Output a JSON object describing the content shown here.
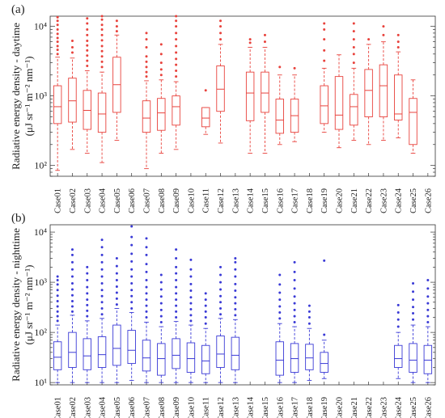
{
  "chart_data": [
    {
      "type": "box",
      "panel_label": "(a)",
      "ylabel": "Radiative energy density - daytime",
      "ylabel_unit": "(μJ sr⁻¹ m⁻² nm⁻¹)",
      "yscale": "log",
      "ylim": [
        70,
        14000
      ],
      "yticks": [
        {
          "value": 100,
          "label": "10²"
        },
        {
          "value": 1000,
          "label": "10³"
        },
        {
          "value": 10000,
          "label": "10⁴"
        }
      ],
      "color": "#e8423c",
      "categories": [
        "Case01",
        "Case02",
        "Case03",
        "Case04",
        "Case05",
        "Case06",
        "Case07",
        "Case08",
        "Case09",
        "Case10",
        "Case11",
        "Case12",
        "Case13",
        "Case14",
        "Case15",
        "Case16",
        "Case17",
        "Case18",
        "Case19",
        "Case20",
        "Case21",
        "Case22",
        "Case23",
        "Case24",
        "Case25",
        "Case26"
      ],
      "boxes": [
        {
          "min": 85,
          "q1": 400,
          "median": 700,
          "q3": 1400,
          "max": 3600,
          "outliers": [
            4000,
            4600,
            5200,
            6000,
            6800,
            7800,
            9000,
            10500,
            12000,
            13500
          ]
        },
        {
          "min": 170,
          "q1": 420,
          "median": 850,
          "q3": 1800,
          "max": 3500,
          "outliers": [
            4200,
            5000,
            6200
          ]
        },
        {
          "min": 150,
          "q1": 330,
          "median": 620,
          "q3": 1200,
          "max": 2300,
          "outliers": [
            2700,
            3200,
            3800,
            4500,
            5300,
            6200,
            7500,
            9000,
            11000,
            13000
          ]
        },
        {
          "min": 110,
          "q1": 300,
          "median": 550,
          "q3": 1100,
          "max": 2200,
          "outliers": [
            2600,
            3100,
            3700,
            4400,
            5200,
            6300,
            7500,
            9000,
            10500,
            12500,
            14000
          ]
        },
        {
          "min": 230,
          "q1": 580,
          "median": 1450,
          "q3": 3600,
          "max": 7500,
          "outliers": [
            8500,
            10000,
            12000
          ]
        },
        null,
        {
          "min": 90,
          "q1": 300,
          "median": 480,
          "q3": 850,
          "max": 1650,
          "outliers": [
            1900,
            2200,
            2600,
            3100,
            3700,
            5000,
            6500,
            8000
          ]
        },
        {
          "min": 150,
          "q1": 320,
          "median": 570,
          "q3": 920,
          "max": 1700,
          "outliers": [
            2000,
            2400,
            3000,
            4000,
            5500
          ]
        },
        {
          "min": 170,
          "q1": 380,
          "median": 700,
          "q3": 1000,
          "max": 1600,
          "outliers": [
            1900,
            2300,
            2800,
            3400,
            4200,
            5200,
            6500,
            8000,
            10000,
            12000,
            14000
          ]
        },
        null,
        {
          "min": 280,
          "q1": 360,
          "median": 480,
          "q3": 680,
          "max": 680,
          "outliers": [
            1200
          ]
        },
        {
          "min": 210,
          "q1": 600,
          "median": 1250,
          "q3": 2700,
          "max": 5500,
          "outliers": [
            6500,
            8000,
            10000,
            12000
          ]
        },
        null,
        {
          "min": 150,
          "q1": 440,
          "median": 1100,
          "q3": 2200,
          "max": 5000,
          "outliers": [
            5800,
            6500
          ]
        },
        {
          "min": 150,
          "q1": 580,
          "median": 1100,
          "q3": 2200,
          "max": 5000,
          "outliers": [
            6000,
            7500
          ]
        },
        {
          "min": 200,
          "q1": 290,
          "median": 450,
          "q3": 900,
          "max": 2000,
          "outliers": [
            2600
          ]
        },
        {
          "min": 220,
          "q1": 300,
          "median": 520,
          "q3": 900,
          "max": 2000,
          "outliers": [
            2500
          ]
        },
        null,
        {
          "min": 300,
          "q1": 400,
          "median": 720,
          "q3": 1400,
          "max": 2500,
          "outliers": [
            3200,
            4500,
            6500,
            9000,
            11000
          ]
        },
        {
          "min": 180,
          "q1": 330,
          "median": 530,
          "q3": 1900,
          "max": 3900,
          "outliers": []
        },
        {
          "min": 230,
          "q1": 380,
          "median": 700,
          "q3": 1050,
          "max": 2500,
          "outliers": [
            3000,
            4000,
            5000,
            6500,
            8500,
            11000
          ]
        },
        {
          "min": 200,
          "q1": 500,
          "median": 1200,
          "q3": 2400,
          "max": 5500,
          "outliers": [
            6500
          ]
        },
        {
          "min": 230,
          "q1": 500,
          "median": 1400,
          "q3": 2800,
          "max": 6000,
          "outliers": [
            7500,
            10000
          ]
        },
        {
          "min": 250,
          "q1": 450,
          "median": 550,
          "q3": 2000,
          "max": 4300,
          "outliers": [
            5000,
            6000,
            7500
          ]
        },
        {
          "min": 150,
          "q1": 200,
          "median": 580,
          "q3": 920,
          "max": 1700,
          "outliers": []
        },
        null
      ]
    },
    {
      "type": "box",
      "panel_label": "(b)",
      "ylabel": "Radiative energy density - nighttime",
      "ylabel_unit": "(μJ sr⁻¹ m⁻² nm⁻¹)",
      "yscale": "log",
      "ylim": [
        9,
        14000
      ],
      "yticks": [
        {
          "value": 10,
          "label": "10¹"
        },
        {
          "value": 100,
          "label": "10²"
        },
        {
          "value": 1000,
          "label": "10³"
        },
        {
          "value": 10000,
          "label": "10⁴"
        }
      ],
      "color": "#3a3ad6",
      "categories": [
        "Case01",
        "Case02",
        "Case03",
        "Case04",
        "Case05",
        "Case06",
        "Case07",
        "Case08",
        "Case09",
        "Case10",
        "Case11",
        "Case12",
        "Case13",
        "Case14",
        "Case15",
        "Case16",
        "Case17",
        "Case18",
        "Case19",
        "Case20",
        "Case21",
        "Case22",
        "Case23",
        "Case24",
        "Case25",
        "Case26"
      ],
      "boxes": [
        {
          "min": 10,
          "q1": 18,
          "median": 32,
          "q3": 65,
          "max": 140,
          "outliers": [
            170,
            210,
            260,
            330,
            420,
            540,
            700,
            900,
            1100,
            1300
          ]
        },
        {
          "min": 10,
          "q1": 20,
          "median": 40,
          "q3": 100,
          "max": 220,
          "outliers": [
            260,
            330,
            420,
            550,
            720,
            950,
            1300,
            1800,
            2500,
            3500,
            4500
          ]
        },
        {
          "min": 10,
          "q1": 18,
          "median": 34,
          "q3": 75,
          "max": 170,
          "outliers": [
            210,
            270,
            350,
            450,
            600,
            800,
            1100,
            1500,
            2000
          ]
        },
        {
          "min": 10,
          "q1": 20,
          "median": 36,
          "q3": 82,
          "max": 190,
          "outliers": [
            230,
            300,
            400,
            530,
            700,
            950,
            1300,
            1800,
            2500,
            3500,
            5000,
            7000
          ]
        },
        {
          "min": 10,
          "q1": 22,
          "median": 48,
          "q3": 140,
          "max": 300,
          "outliers": [
            360,
            470,
            620,
            820,
            1100,
            1500,
            2100,
            3000
          ]
        },
        {
          "min": 11,
          "q1": 24,
          "median": 44,
          "q3": 110,
          "max": 250,
          "outliers": [
            300,
            400,
            530,
            700,
            950,
            1300,
            1800,
            2600,
            3700,
            5500,
            8000,
            13000
          ]
        },
        {
          "min": 10,
          "q1": 17,
          "median": 31,
          "q3": 70,
          "max": 160,
          "outliers": [
            200,
            260,
            340,
            450,
            600,
            800,
            1100,
            1600,
            2300,
            3500,
            5000,
            7500
          ]
        },
        {
          "min": 10,
          "q1": 14,
          "median": 30,
          "q3": 60,
          "max": 130,
          "outliers": [
            160,
            210,
            280,
            380,
            520,
            720,
            1000,
            1400
          ]
        },
        {
          "min": 10,
          "q1": 19,
          "median": 35,
          "q3": 75,
          "max": 165,
          "outliers": [
            200,
            260,
            340,
            450,
            600,
            800,
            1100,
            1500,
            2000,
            3000,
            4500
          ]
        },
        {
          "min": 10,
          "q1": 16,
          "median": 30,
          "q3": 62,
          "max": 140,
          "outliers": [
            170,
            220,
            290,
            380,
            500,
            680,
            920,
            1300,
            1800,
            2800
          ]
        },
        {
          "min": 10,
          "q1": 15,
          "median": 27,
          "q3": 55,
          "max": 120,
          "outliers": [
            150,
            200,
            260,
            340,
            450,
            600
          ]
        },
        {
          "min": 10,
          "q1": 20,
          "median": 37,
          "q3": 85,
          "max": 190,
          "outliers": [
            230,
            300,
            400,
            530,
            720,
            1000,
            1400,
            2000
          ]
        },
        {
          "min": 10,
          "q1": 18,
          "median": 35,
          "q3": 80,
          "max": 180,
          "outliers": [
            220,
            290,
            380,
            500,
            680,
            920,
            1300,
            1800,
            2500,
            3000
          ]
        },
        null,
        null,
        {
          "min": 10,
          "q1": 14,
          "median": 28,
          "q3": 65,
          "max": 150,
          "outliers": [
            190,
            250,
            330,
            450,
            620,
            900,
            1400
          ]
        },
        {
          "min": 10,
          "q1": 16,
          "median": 30,
          "q3": 60,
          "max": 130,
          "outliers": [
            160,
            210,
            280,
            380,
            520,
            750,
            1100,
            1600,
            2500
          ]
        },
        {
          "min": 11,
          "q1": 18,
          "median": 31,
          "q3": 58,
          "max": 120,
          "outliers": [
            150,
            200,
            260,
            340
          ]
        },
        {
          "min": 12,
          "q1": 16,
          "median": 24,
          "q3": 40,
          "max": 70,
          "outliers": [
            90,
            2700
          ]
        },
        null,
        null,
        null,
        null,
        {
          "min": 12,
          "q1": 20,
          "median": 30,
          "q3": 55,
          "max": 100,
          "outliers": [
            130,
            180,
            250,
            350
          ]
        },
        {
          "min": 10,
          "q1": 16,
          "median": 28,
          "q3": 60,
          "max": 140,
          "outliers": [
            180,
            240,
            320,
            450,
            650,
            950
          ]
        },
        {
          "min": 10,
          "q1": 15,
          "median": 28,
          "q3": 55,
          "max": 130,
          "outliers": [
            160,
            210,
            280,
            380,
            520,
            750,
            1100
          ]
        }
      ]
    }
  ]
}
